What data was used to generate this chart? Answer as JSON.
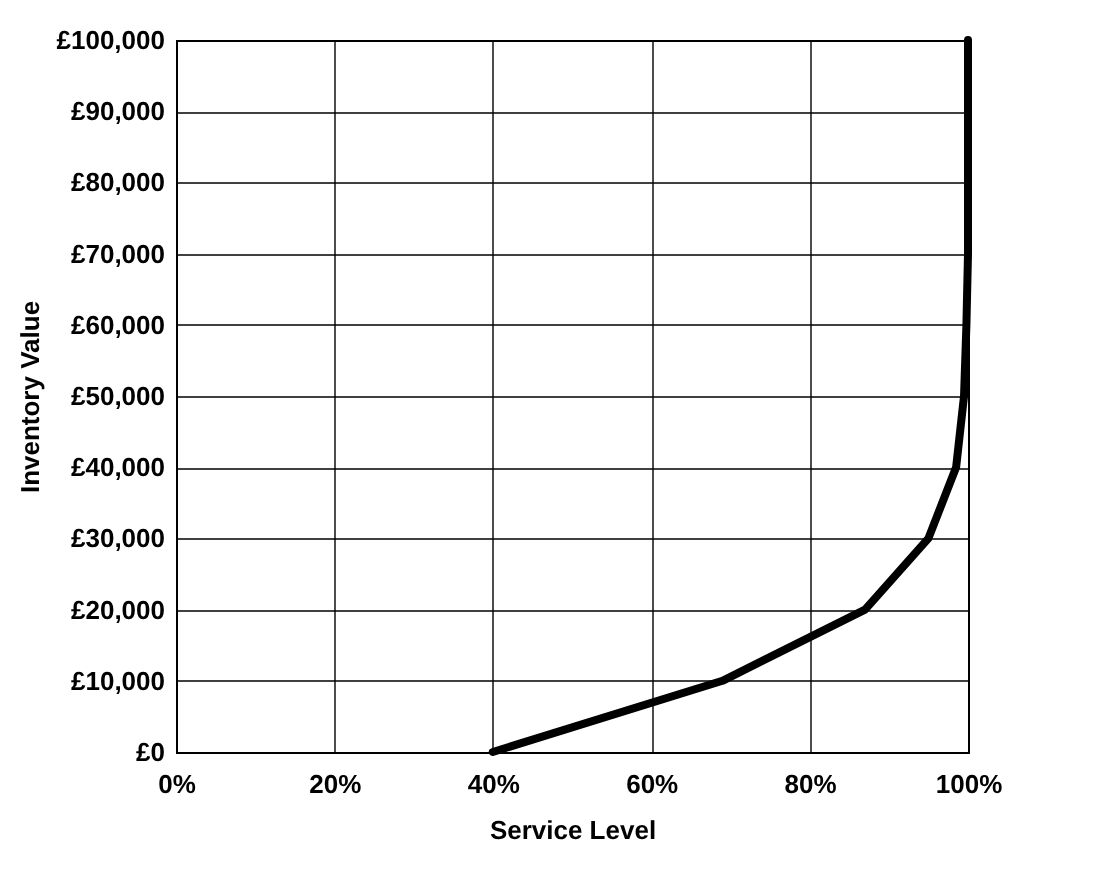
{
  "chart_data": {
    "type": "line",
    "xlabel": "Service Level",
    "ylabel": "Inventory Value",
    "x": [
      40,
      69,
      87,
      95,
      98.5,
      99.5,
      99.8,
      100,
      100,
      100,
      100
    ],
    "series": [
      {
        "color": "#000000",
        "values": [
          0,
          10000,
          20000,
          30000,
          40000,
          50000,
          60000,
          70000,
          80000,
          90000,
          100000
        ]
      }
    ],
    "xlim": [
      0,
      100
    ],
    "xticks": [
      {
        "value": 0,
        "label": "0%"
      },
      {
        "value": 20,
        "label": "20%"
      },
      {
        "value": 40,
        "label": "40%"
      },
      {
        "value": 60,
        "label": "60%"
      },
      {
        "value": 80,
        "label": "80%"
      },
      {
        "value": 100,
        "label": "100%"
      }
    ],
    "ylim": [
      0,
      100000
    ],
    "yticks": [
      {
        "value": 0,
        "label": "£0"
      },
      {
        "value": 10000,
        "label": "£10,000"
      },
      {
        "value": 20000,
        "label": "£20,000"
      },
      {
        "value": 30000,
        "label": "£30,000"
      },
      {
        "value": 40000,
        "label": "£40,000"
      },
      {
        "value": 50000,
        "label": "£50,000"
      },
      {
        "value": 60000,
        "label": "£60,000"
      },
      {
        "value": 70000,
        "label": "£70,000"
      },
      {
        "value": 80000,
        "label": "£80,000"
      },
      {
        "value": 90000,
        "label": "£90,000"
      },
      {
        "value": 100000,
        "label": "£100,000"
      }
    ],
    "grid": true,
    "marker": "none",
    "line_style": "solid"
  }
}
